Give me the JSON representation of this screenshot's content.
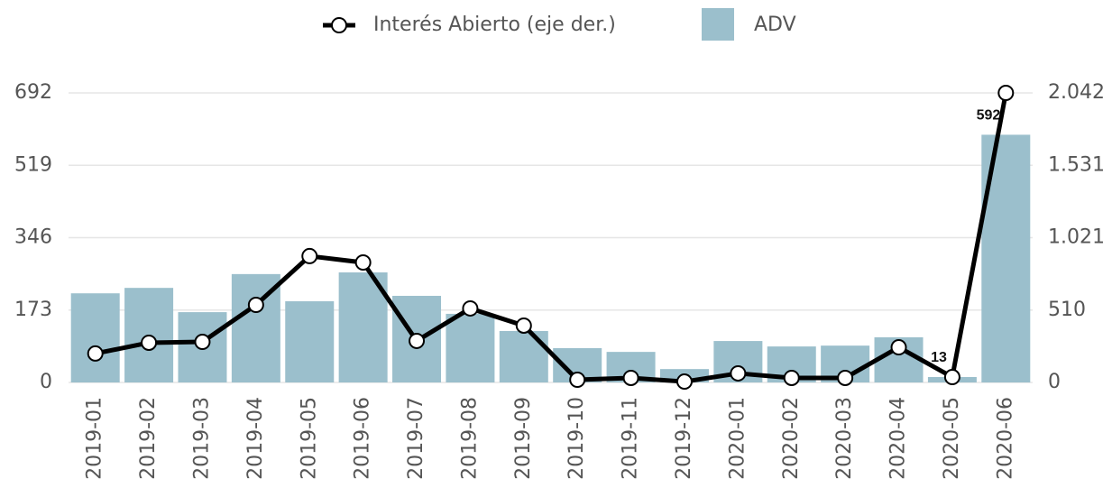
{
  "chart_data": {
    "type": "bar",
    "categories": [
      "2019-01",
      "2019-02",
      "2019-03",
      "2019-04",
      "2019-05",
      "2019-06",
      "2019-07",
      "2019-08",
      "2019-09",
      "2019-10",
      "2019-11",
      "2019-12",
      "2020-01",
      "2020-02",
      "2020-03",
      "2020-04",
      "2020-05",
      "2020-06"
    ],
    "series": [
      {
        "name": "Interés Abierto (eje der.)",
        "type": "line",
        "axis": "y2",
        "color": "#000000",
        "values": [
          204,
          280,
          286,
          547,
          891,
          846,
          293,
          522,
          401,
          19,
          32,
          6,
          64,
          32,
          32,
          248,
          38,
          2042
        ]
      },
      {
        "name": "ADV",
        "type": "bar",
        "color": "#9bbfcc",
        "values": [
          213,
          226,
          168,
          259,
          194,
          263,
          207,
          164,
          123,
          82,
          73,
          32,
          99,
          86,
          88,
          108,
          13,
          592
        ],
        "value_labels": [
          null,
          null,
          null,
          null,
          null,
          null,
          null,
          null,
          null,
          null,
          null,
          null,
          null,
          null,
          null,
          null,
          "13",
          "592"
        ]
      }
    ],
    "ylim": [
      0,
      692
    ],
    "yticks": [
      0,
      173,
      346,
      519,
      692
    ],
    "y2lim": [
      0,
      2042
    ],
    "y2ticks": [
      0,
      510,
      {
        "value": 1021,
        "label": "1.021"
      },
      {
        "value": 1531,
        "label": "1.531"
      },
      {
        "value": 2042,
        "label": "2.042"
      }
    ],
    "grid": true,
    "legend": "top"
  }
}
